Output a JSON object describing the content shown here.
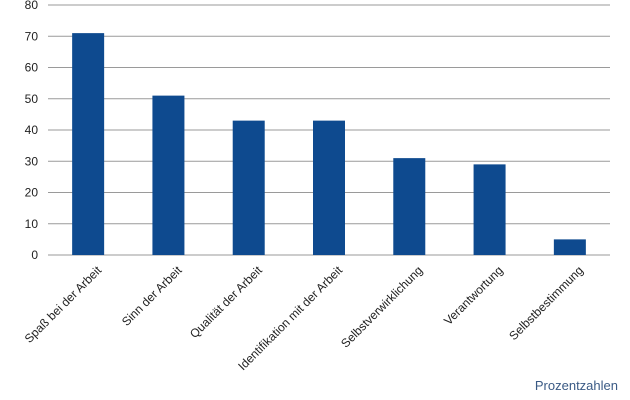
{
  "chart_data": {
    "type": "bar",
    "categories": [
      "Spaß bei der Arbeit",
      "Sinn der Arbeit",
      "Qualität der Arbeit",
      "Identifikation mit der Arbeit",
      "Selbstverwirklichung",
      "Verantwortung",
      "Selbstbestimmung"
    ],
    "values": [
      71,
      51,
      43,
      43,
      31,
      29,
      5
    ],
    "color": "#0e4a8f",
    "ylim": [
      0,
      80
    ],
    "yticks": [
      0,
      10,
      20,
      30,
      40,
      50,
      60,
      70,
      80
    ],
    "grid": true,
    "annotation": "Prozentzahlen"
  }
}
